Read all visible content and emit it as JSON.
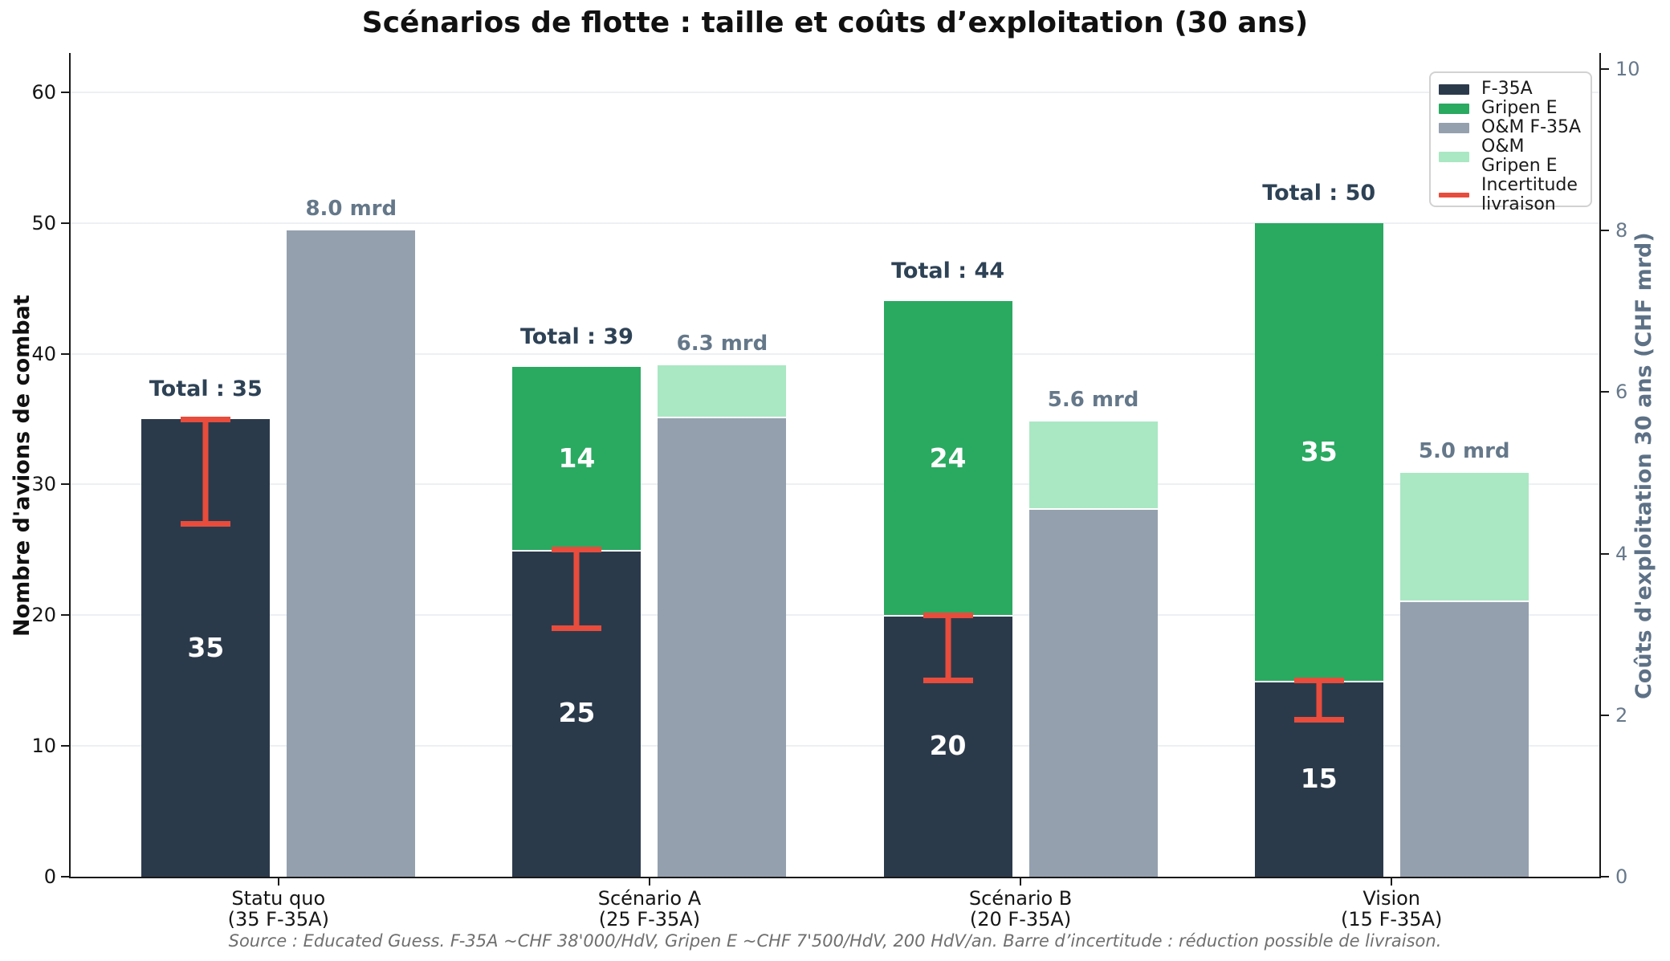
{
  "title": "Scénarios de flotte : taille et coûts d’exploitation (30 ans)",
  "footer": "Source : Educated Guess. F-35A ~CHF 38'000/HdV, Gripen E ~CHF 7'500/HdV, 200 HdV/an. Barre d’incertitude : réduction possible de livraison.",
  "colors": {
    "f35a": "#2b3a4b",
    "gripen": "#2aa961",
    "om_f35a": "#94a0ae",
    "om_gripen": "#a9e8c3",
    "uncertainty": "#e84c3c",
    "grid": "#edf0f3",
    "total_label": "#2e4256",
    "cost_label": "#65788a",
    "right_axis": "#66788b"
  },
  "chart_data": {
    "type": "bar",
    "subtype": "stacked-grouped, dual axis",
    "title": "Scénarios de flotte : taille et coûts d’exploitation (30 ans)",
    "categories": [
      [
        "Statu quo",
        "(35 F-35A)"
      ],
      [
        "Scénario A",
        "(25 F-35A)"
      ],
      [
        "Scénario B",
        "(20 F-35A)"
      ],
      [
        "Vision",
        "(15 F-35A)"
      ]
    ],
    "series": [
      {
        "name": "F-35A",
        "axis": "left",
        "color": "#2b3a4b",
        "values": [
          35,
          25,
          20,
          15
        ],
        "labels": [
          "35",
          "25",
          "20",
          "15"
        ]
      },
      {
        "name": "Gripen E",
        "axis": "left",
        "color": "#2aa961",
        "values": [
          0,
          14,
          24,
          35
        ],
        "labels": [
          "",
          "14",
          "24",
          "35"
        ]
      },
      {
        "name": "O&M F-35A",
        "axis": "right",
        "color": "#94a0ae",
        "values": [
          8.0,
          5.7,
          4.56,
          3.42
        ],
        "labels": [
          "",
          "",
          "",
          ""
        ]
      },
      {
        "name": "O&M Gripen E",
        "axis": "right",
        "color": "#a9e8c3",
        "values": [
          0,
          0.63,
          1.08,
          1.58
        ],
        "labels": [
          "",
          "",
          "",
          ""
        ]
      }
    ],
    "total_labels": [
      "Total : 35",
      "Total : 39",
      "Total : 44",
      "Total : 50"
    ],
    "cost_labels": [
      "8.0 mrd",
      "6.3 mrd",
      "5.6 mrd",
      "5.0 mrd"
    ],
    "error_bars": {
      "color": "#e84c3c",
      "ranges": [
        [
          27,
          35
        ],
        [
          19,
          25
        ],
        [
          15,
          20
        ],
        [
          12,
          15
        ]
      ]
    },
    "left_axis": {
      "label": "Nombre d'avions de combat",
      "ticks": [
        0,
        10,
        20,
        30,
        40,
        50,
        60
      ],
      "max": 63
    },
    "right_axis": {
      "label": "Coûts d'exploitation 30 ans (CHF mrd)",
      "ticks": [
        0,
        2,
        4,
        6,
        8,
        10
      ],
      "max": 10.2
    },
    "legend": {
      "position": "upper right",
      "items": [
        {
          "label": "F-35A",
          "swatch": "patch",
          "color": "#2b3a4b"
        },
        {
          "label": "Gripen E",
          "swatch": "patch",
          "color": "#2aa961"
        },
        {
          "label": "O&M F-35A",
          "swatch": "patch",
          "color": "#94a0ae"
        },
        {
          "label": "O&M Gripen E",
          "swatch": "patch",
          "color": "#a9e8c3"
        },
        {
          "label": "Incertitude livraison",
          "swatch": "line",
          "color": "#e84c3c"
        }
      ]
    },
    "grid": "horizontal, left-axis ticks only"
  }
}
